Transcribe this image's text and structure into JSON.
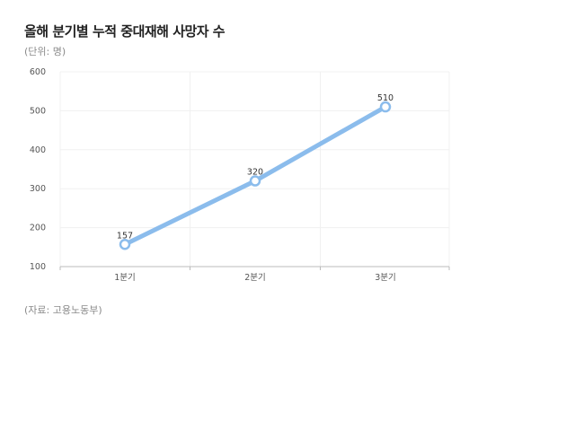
{
  "header": {
    "title": "올해 분기별 누적 중대재해 사망자 수",
    "subtitle": "(단위: 명)"
  },
  "footer": {
    "source": "(자료: 고용노동부)"
  },
  "colors": {
    "line": "#8bbcec",
    "marker_fill": "#ffffff",
    "grid": "#f0f0f0",
    "axis": "#bbbbbb"
  },
  "chart_data": {
    "type": "line",
    "title": "올해 분기별 누적 중대재해 사망자 수",
    "subtitle": "(단위: 명)",
    "categories": [
      "1분기",
      "2분기",
      "3분기"
    ],
    "series": [
      {
        "values": [
          157,
          320,
          510
        ]
      }
    ],
    "yticks": [
      "100",
      "200",
      "300",
      "400",
      "500",
      "600"
    ],
    "ylim": [
      100,
      600
    ],
    "grid": true,
    "legend": "none",
    "data_labels": true
  }
}
